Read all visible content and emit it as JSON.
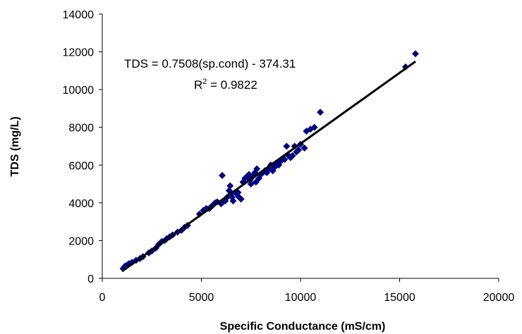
{
  "chart_data": {
    "type": "scatter",
    "xlabel": "Specific Conductance (mS/cm)",
    "ylabel": "TDS (mg/L)",
    "xlim": [
      0,
      20000
    ],
    "ylim": [
      0,
      14000
    ],
    "xticks": [
      "0",
      "5000",
      "10000",
      "15000",
      "20000"
    ],
    "yticks": [
      "0",
      "2000",
      "4000",
      "6000",
      "8000",
      "10000",
      "12000",
      "14000"
    ],
    "grid": false,
    "legend": "none",
    "marker": "diamond",
    "marker_color": "#000080",
    "trendline": {
      "slope": 0.7508,
      "intercept": -374.31,
      "x_range": [
        1000,
        15800
      ],
      "equation_label": "TDS = 0.7508(sp.cond) - 374.31",
      "r2_prefix": "R",
      "r2_exponent": "2",
      "r2_value": " = 0.9822"
    },
    "points": [
      [
        1050,
        520
      ],
      [
        1150,
        650
      ],
      [
        1250,
        700
      ],
      [
        1350,
        780
      ],
      [
        1500,
        850
      ],
      [
        1700,
        950
      ],
      [
        1900,
        1050
      ],
      [
        2050,
        1150
      ],
      [
        2350,
        1350
      ],
      [
        2500,
        1450
      ],
      [
        2700,
        1600
      ],
      [
        2850,
        1800
      ],
      [
        3000,
        1950
      ],
      [
        3150,
        2000
      ],
      [
        3250,
        2100
      ],
      [
        3400,
        2200
      ],
      [
        3550,
        2300
      ],
      [
        3800,
        2450
      ],
      [
        4000,
        2550
      ],
      [
        4150,
        2700
      ],
      [
        4300,
        2800
      ],
      [
        4900,
        3400
      ],
      [
        5100,
        3600
      ],
      [
        5250,
        3700
      ],
      [
        5400,
        3700
      ],
      [
        5500,
        3800
      ],
      [
        5600,
        3900
      ],
      [
        5700,
        4000
      ],
      [
        5800,
        4050
      ],
      [
        6000,
        3950
      ],
      [
        6050,
        5450
      ],
      [
        6200,
        4100
      ],
      [
        6300,
        4300
      ],
      [
        6400,
        4650
      ],
      [
        6450,
        4900
      ],
      [
        6500,
        4500
      ],
      [
        6550,
        4300
      ],
      [
        6600,
        4100
      ],
      [
        6750,
        4500
      ],
      [
        6850,
        4550
      ],
      [
        6900,
        4300
      ],
      [
        7000,
        4200
      ],
      [
        7100,
        5100
      ],
      [
        7200,
        5300
      ],
      [
        7300,
        5400
      ],
      [
        7400,
        5500
      ],
      [
        7450,
        5200
      ],
      [
        7500,
        5000
      ],
      [
        7600,
        5400
      ],
      [
        7700,
        5600
      ],
      [
        7750,
        5100
      ],
      [
        7800,
        5800
      ],
      [
        7900,
        5300
      ],
      [
        8000,
        5500
      ],
      [
        8100,
        5600
      ],
      [
        8200,
        5700
      ],
      [
        8300,
        5600
      ],
      [
        8400,
        5800
      ],
      [
        8500,
        6000
      ],
      [
        8600,
        5700
      ],
      [
        8700,
        5900
      ],
      [
        8800,
        6100
      ],
      [
        8900,
        6000
      ],
      [
        9000,
        6200
      ],
      [
        9100,
        6300
      ],
      [
        9200,
        6300
      ],
      [
        9300,
        7000
      ],
      [
        9400,
        6500
      ],
      [
        9500,
        6400
      ],
      [
        9600,
        6500
      ],
      [
        9700,
        7000
      ],
      [
        9800,
        6700
      ],
      [
        9900,
        6800
      ],
      [
        10000,
        7100
      ],
      [
        10200,
        6900
      ],
      [
        10300,
        7800
      ],
      [
        10500,
        7900
      ],
      [
        10700,
        8000
      ],
      [
        11000,
        8800
      ],
      [
        15300,
        11200
      ],
      [
        15800,
        11900
      ]
    ]
  }
}
